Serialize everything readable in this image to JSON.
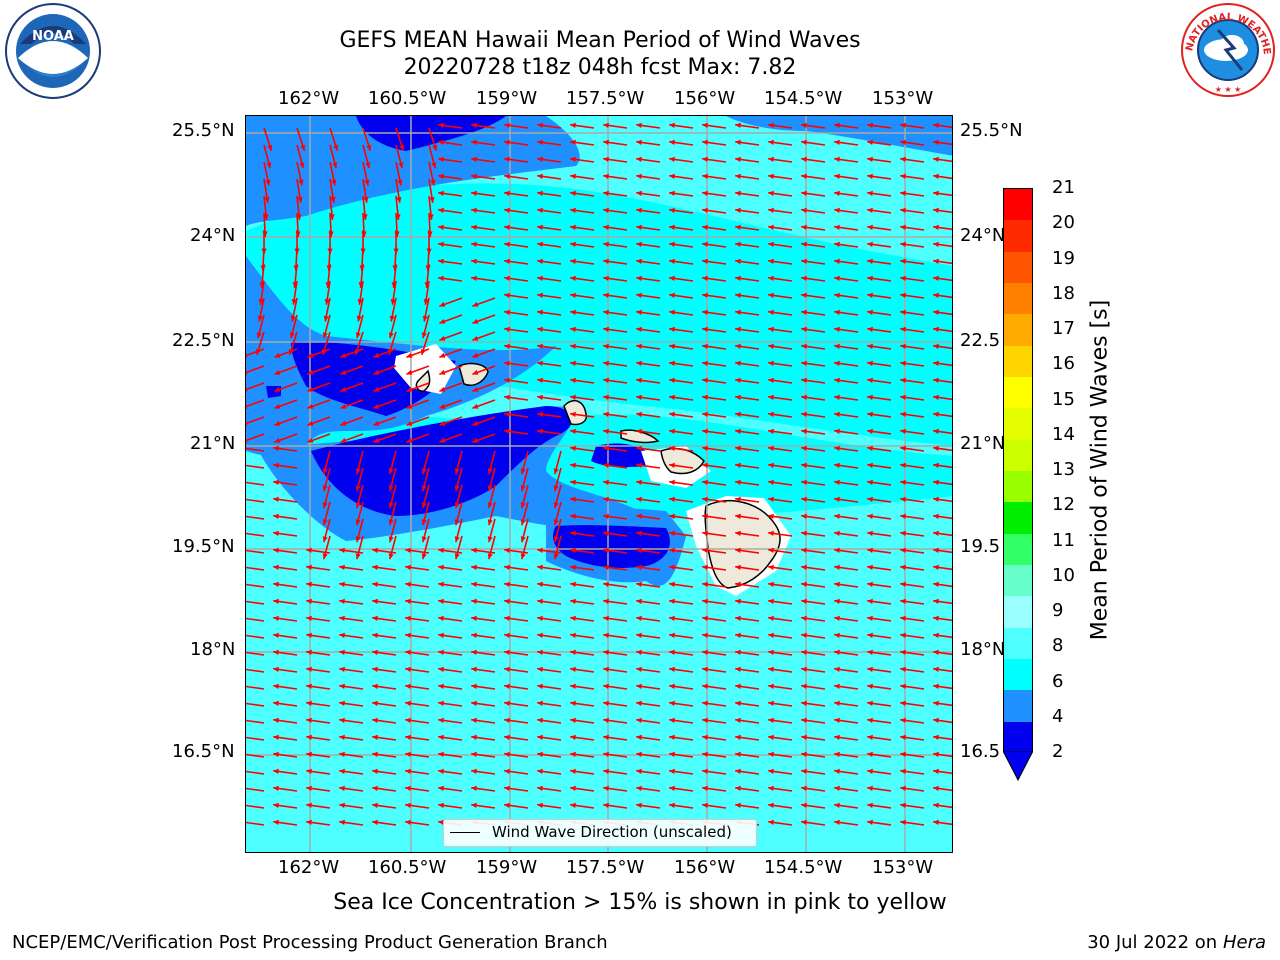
{
  "title": {
    "line1": "GEFS MEAN Hawaii Mean Period of Wind Waves",
    "line2": "20220728 t18z 048h fcst   Max: 7.82"
  },
  "logos": {
    "left": {
      "text": "NOAA"
    },
    "right": {
      "text": "NATIONAL WEATHER SERVICE"
    }
  },
  "map": {
    "lon_ticks": [
      "162°W",
      "160.5°W",
      "159°W",
      "157.5°W",
      "156°W",
      "154.5°W",
      "153°W"
    ],
    "lat_ticks_left": [
      "25.5°N",
      "24°N",
      "22.5°N",
      "21°N",
      "19.5°N",
      "18°N",
      "16.5°N"
    ],
    "lat_ticks_right": [
      "25.5°N",
      "24°N",
      "22.5",
      "21°N",
      "19.5",
      "18°N",
      "16.5"
    ],
    "legend_label": "Wind Wave Direction (unscaled)",
    "colors": {
      "ocean_light": "#4dffff",
      "ocean_cyan": "#00ffff",
      "ocean_mid": "#1e90ff",
      "ocean_dark": "#0000ee",
      "land": "#eeeadb",
      "arrow": "#ff0000"
    }
  },
  "colorbar": {
    "label": "Mean Period of Wind Waves [s]",
    "ticks": [
      "21",
      "20",
      "19",
      "18",
      "17",
      "16",
      "15",
      "14",
      "13",
      "12",
      "11",
      "10",
      "9",
      "8",
      "6",
      "4",
      "2"
    ],
    "colors": [
      "#ff0000",
      "#ff2a00",
      "#ff5500",
      "#ff8000",
      "#ffaa00",
      "#ffd500",
      "#ffff00",
      "#e6ff00",
      "#ccff00",
      "#99ff00",
      "#00ee00",
      "#33ff66",
      "#66ffcc",
      "#99ffff",
      "#4dffff",
      "#00ffff",
      "#1e90ff",
      "#0000ee"
    ]
  },
  "notes": {
    "ice": "Sea Ice Concentration > 15% is shown in pink to yellow",
    "footer_left": "NCEP/EMC/Verification Post Processing Product Generation Branch",
    "footer_date": "30 Jul 2022 on",
    "footer_host": "Hera"
  }
}
